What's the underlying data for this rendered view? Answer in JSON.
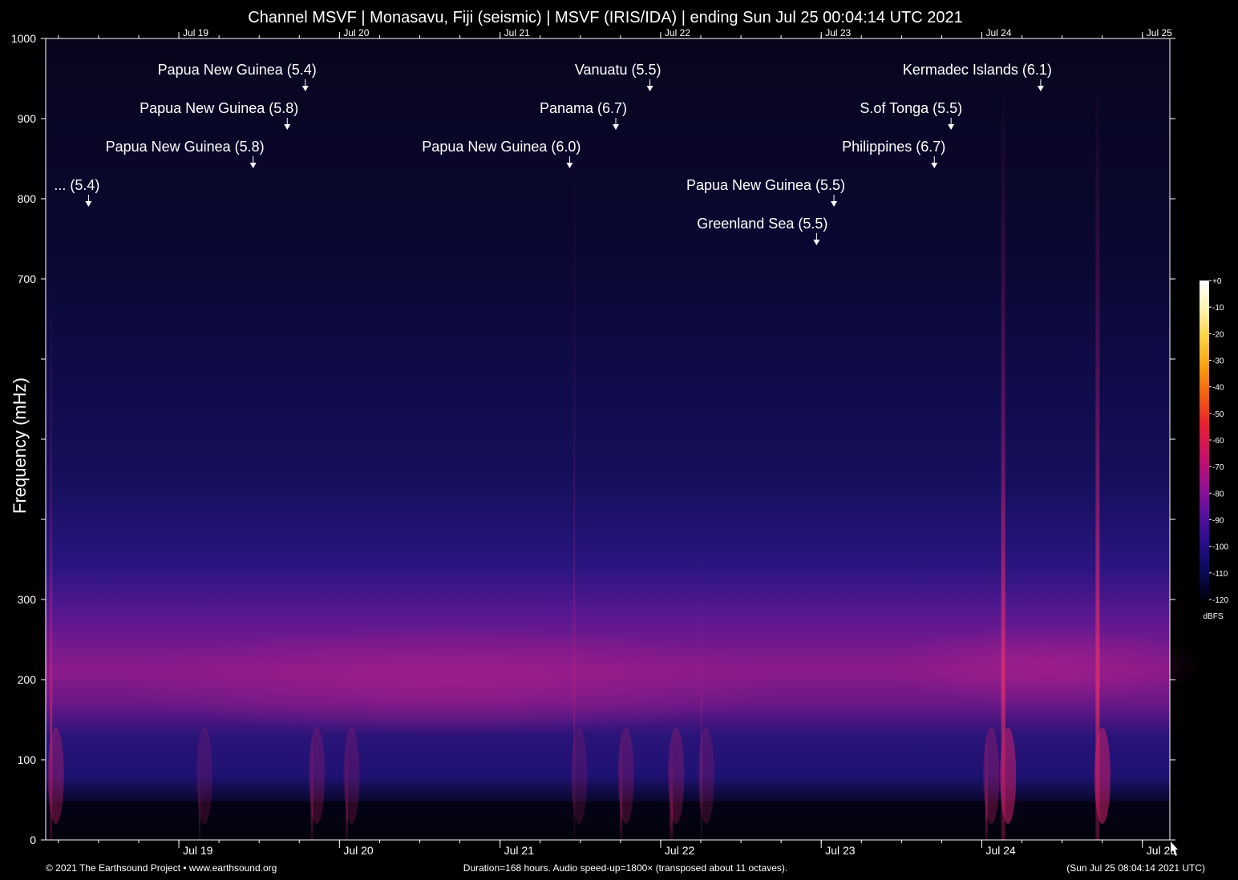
{
  "chart_data": {
    "type": "heatmap",
    "title": "Channel MSVF | Monasavu, Fiji (seismic) | MSVF (IRIS/IDA) | ending Sun Jul 25 00:04:14 UTC 2021",
    "ylabel": "Frequency (mHz)",
    "xlabel": "",
    "ylim": [
      0,
      1000
    ],
    "y_tick_labels": [
      "0",
      "100",
      "200",
      "300",
      "700",
      "800",
      "900",
      "1000"
    ],
    "y_tick_values": [
      0,
      100,
      200,
      300,
      700,
      800,
      900,
      1000
    ],
    "y_minor_ticks": [
      400,
      500,
      600
    ],
    "x_range_hours": [
      0,
      168
    ],
    "x_day_ticks": [
      {
        "label": "Jul 19",
        "hour": 19.9
      },
      {
        "label": "Jul 20",
        "hour": 43.9
      },
      {
        "label": "Jul 21",
        "hour": 67.9
      },
      {
        "label": "Jul 22",
        "hour": 91.9
      },
      {
        "label": "Jul 23",
        "hour": 115.9
      },
      {
        "label": "Jul 24",
        "hour": 139.9
      },
      {
        "label": "Jul 25",
        "hour": 163.9
      }
    ],
    "events": [
      {
        "label": "... (5.4)",
        "hour": 6.4,
        "row": 3
      },
      {
        "label": "Papua New Guinea (5.8)",
        "hour": 31.0,
        "row": 2
      },
      {
        "label": "Papua New Guinea (5.8)",
        "hour": 36.1,
        "row": 1
      },
      {
        "label": "Papua New Guinea (5.4)",
        "hour": 38.8,
        "row": 0
      },
      {
        "label": "Papua New Guinea (6.0)",
        "hour": 78.3,
        "row": 2
      },
      {
        "label": "Panama (6.7)",
        "hour": 85.2,
        "row": 1
      },
      {
        "label": "Vanuatu (5.5)",
        "hour": 90.3,
        "row": 0
      },
      {
        "label": "Greenland Sea (5.5)",
        "hour": 115.2,
        "row": 4
      },
      {
        "label": "Papua New Guinea (5.5)",
        "hour": 117.8,
        "row": 3
      },
      {
        "label": "Philippines (6.7)",
        "hour": 132.8,
        "row": 2
      },
      {
        "label": "S.of Tonga (5.5)",
        "hour": 135.3,
        "row": 1
      },
      {
        "label": "Kermadec Islands (6.1)",
        "hour": 148.7,
        "row": 0
      }
    ],
    "colorbar": {
      "unit": "dBFS",
      "tick_labels": [
        "+0",
        "-10",
        "-20",
        "-30",
        "-40",
        "-50",
        "-60",
        "-70",
        "-80",
        "-90",
        "-100",
        "-110",
        "-120"
      ],
      "range": [
        -120,
        0
      ],
      "colors": [
        "#000010",
        "#0a0a5a",
        "#2a0d8a",
        "#5a10a0",
        "#9a1090",
        "#c8106a",
        "#e82030",
        "#f06010",
        "#f8a010",
        "#fcd040",
        "#fff4b0",
        "#ffffff"
      ]
    },
    "grid": false,
    "legend": "right"
  },
  "footer": {
    "copyright": "© 2021 The Earthsound Project • www.earthsound.org",
    "duration": "Duration=168 hours. Audio speed-up=1800× (transposed about 11 octaves).",
    "timestamp": "(Sun Jul 25 08:04:14 2021 UTC)"
  }
}
